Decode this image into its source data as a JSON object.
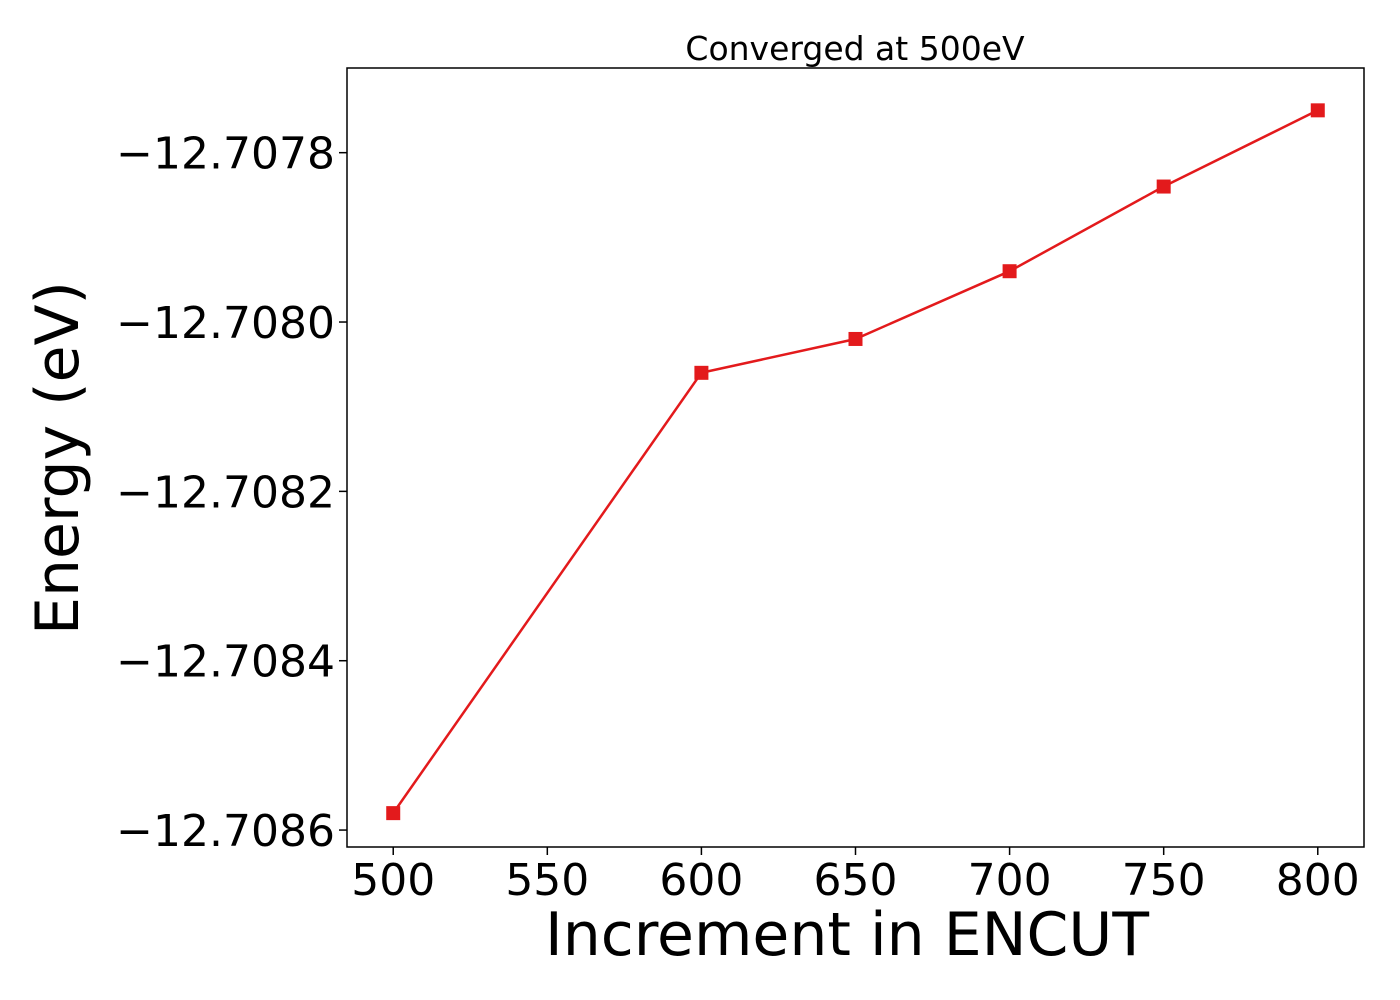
{
  "chart_data": {
    "type": "line",
    "title": "Converged at 500eV",
    "xlabel": "Increment in ENCUT",
    "ylabel": "Energy (eV)",
    "x": [
      500,
      600,
      650,
      700,
      750,
      800
    ],
    "series": [
      {
        "values": [
          -12.70858,
          -12.70806,
          -12.70802,
          -12.70794,
          -12.70784,
          -12.70775
        ],
        "color": "#e31a1c",
        "marker": "square"
      }
    ],
    "xticks": [
      500,
      550,
      600,
      650,
      700,
      750,
      800
    ],
    "xtick_labels": [
      "500",
      "550",
      "600",
      "650",
      "700",
      "750",
      "800"
    ],
    "yticks": [
      -12.7086,
      -12.7084,
      -12.7082,
      -12.708,
      -12.7078
    ],
    "ytick_labels": [
      "−12.7086",
      "−12.7084",
      "−12.7082",
      "−12.7080",
      "−12.7078"
    ],
    "xlim": [
      485,
      815
    ],
    "ylim": [
      -12.70862,
      -12.7077
    ],
    "grid": false,
    "legend": "none"
  }
}
